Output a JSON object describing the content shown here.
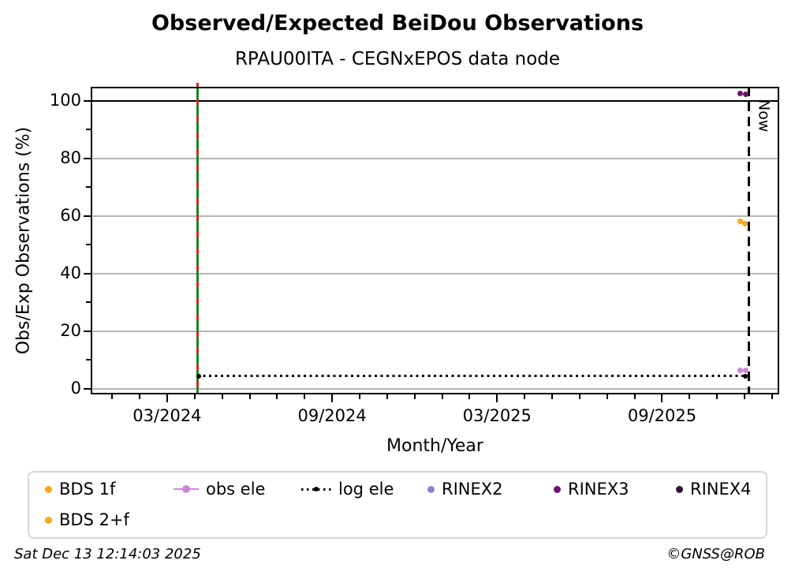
{
  "header": {
    "title": "Observed/Expected BeiDou Observations",
    "subtitle": "RPAU00ITA - CEGNxEPOS data node"
  },
  "chart_data": {
    "type": "scatter",
    "title": "Observed/Expected BeiDou Observations",
    "subtitle": "RPAU00ITA - CEGNxEPOS data node",
    "xlabel": "Month/Year",
    "ylabel": "Obs/Exp Observations (%)",
    "x_axis_unit": "month index, 0 = 03/2024, 1 unit = 1 month",
    "xlim": [
      -2.78,
      22.26
    ],
    "ylim": [
      -2,
      104.8
    ],
    "grid": true,
    "x_major_ticks": [
      {
        "x": 0,
        "label": "03/2024"
      },
      {
        "x": 6,
        "label": "09/2024"
      },
      {
        "x": 12,
        "label": "03/2025"
      },
      {
        "x": 18,
        "label": "09/2025"
      }
    ],
    "x_minor_tick_step_months": 1,
    "y_major_ticks": [
      {
        "y": 0,
        "label": "0"
      },
      {
        "y": 20,
        "label": "20"
      },
      {
        "y": 40,
        "label": "40"
      },
      {
        "y": 60,
        "label": "60"
      },
      {
        "y": 80,
        "label": "80"
      },
      {
        "y": 100,
        "label": "100"
      }
    ],
    "y_minor_ticks": [
      10,
      30,
      50,
      70,
      90
    ],
    "y_gridlines": [
      0,
      20,
      40,
      60,
      80
    ],
    "reference_lines": {
      "hundred_percent": {
        "y": 100,
        "color": "#000000",
        "style": "solid"
      },
      "station_start": {
        "x": 1.1,
        "style": "green solid overlaid with red dashes",
        "colors": [
          "#118a11",
          "#e02222"
        ]
      },
      "now": {
        "x": 21.15,
        "label": "Now",
        "color": "#000000",
        "style": "dashed"
      },
      "log_ele": {
        "name": "log ele",
        "y": 4.3,
        "x_start": 1.1,
        "x_end": 21.15,
        "color": "#000000",
        "style": "dotted",
        "end_markers": true
      }
    },
    "series": [
      {
        "name": "RINEX3",
        "color": "#70116F",
        "points": [
          {
            "x": 20.85,
            "y": 102.4
          },
          {
            "x": 21.05,
            "y": 102.2
          }
        ]
      },
      {
        "name": "BDS 1f",
        "color": "#F6A71B",
        "points": [
          {
            "x": 20.85,
            "y": 58.0
          }
        ]
      },
      {
        "name": "BDS 2+f",
        "color": "#F6A71B",
        "points": [
          {
            "x": 21.0,
            "y": 57.2
          }
        ]
      },
      {
        "name": "obs ele",
        "color": "#C98BD4",
        "points": [
          {
            "x": 20.85,
            "y": 6.4
          },
          {
            "x": 21.05,
            "y": 6.4
          }
        ]
      }
    ],
    "legend_position": "bottom"
  },
  "legend": {
    "items": [
      {
        "label": "BDS 1f",
        "marker": "dot",
        "color": "#F6A71B"
      },
      {
        "label": "obs ele",
        "marker": "line-dot",
        "color": "#C98BD4"
      },
      {
        "label": "log ele",
        "marker": "dotted-line",
        "color": "#000000"
      },
      {
        "label": "RINEX2",
        "marker": "dot",
        "color": "#8E83CE"
      },
      {
        "label": "RINEX3",
        "marker": "dot",
        "color": "#70116F"
      },
      {
        "label": "RINEX4",
        "marker": "dot",
        "color": "#2E1237"
      },
      {
        "label": "BDS 2+f",
        "marker": "dot",
        "color": "#F6A71B"
      }
    ]
  },
  "footer": {
    "timestamp": "Sat Dec 13 12:14:03 2025",
    "credit": "©GNSS@ROB"
  }
}
